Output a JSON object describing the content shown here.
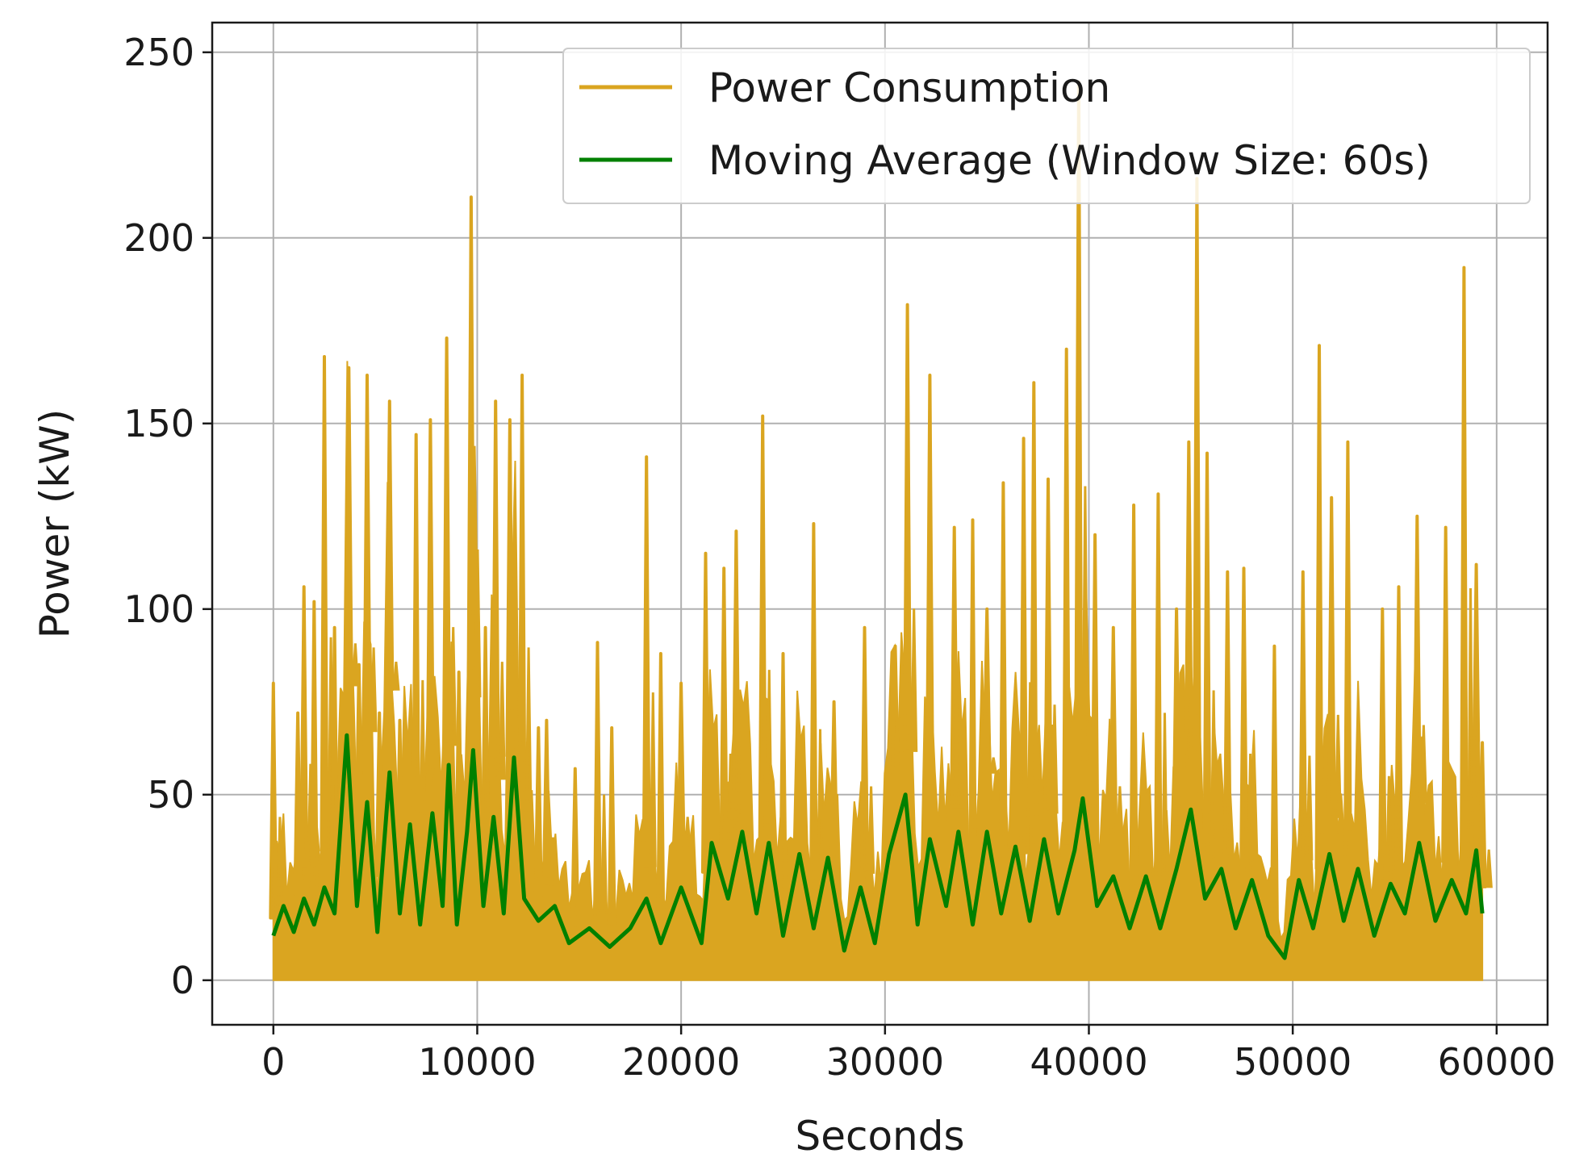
{
  "chart_data": {
    "type": "line",
    "title": "",
    "xlabel": "Seconds",
    "ylabel": "Power (kW)",
    "xlim": [
      -3000,
      62500
    ],
    "ylim": [
      -12,
      258
    ],
    "xticks": [
      0,
      10000,
      20000,
      30000,
      40000,
      50000,
      60000
    ],
    "xtick_labels": [
      "0",
      "10000",
      "20000",
      "30000",
      "40000",
      "50000",
      "60000"
    ],
    "yticks": [
      0,
      50,
      100,
      150,
      200,
      250
    ],
    "ytick_labels": [
      "0",
      "50",
      "100",
      "150",
      "200",
      "250"
    ],
    "grid": true,
    "legend_position": "top-right",
    "series": [
      {
        "name": "Power Consumption",
        "color": "#daa520",
        "style": "dense fluctuating band from near 0 with frequent spikes",
        "peaks": [
          {
            "x": 0,
            "y": 80
          },
          {
            "x": 1200,
            "y": 72
          },
          {
            "x": 1500,
            "y": 106
          },
          {
            "x": 2000,
            "y": 102
          },
          {
            "x": 2500,
            "y": 168
          },
          {
            "x": 3000,
            "y": 95
          },
          {
            "x": 3700,
            "y": 165
          },
          {
            "x": 4200,
            "y": 85
          },
          {
            "x": 4600,
            "y": 163
          },
          {
            "x": 5200,
            "y": 72
          },
          {
            "x": 5700,
            "y": 156
          },
          {
            "x": 6200,
            "y": 70
          },
          {
            "x": 7000,
            "y": 147
          },
          {
            "x": 7700,
            "y": 151
          },
          {
            "x": 8500,
            "y": 173
          },
          {
            "x": 9100,
            "y": 83
          },
          {
            "x": 9700,
            "y": 211
          },
          {
            "x": 10400,
            "y": 95
          },
          {
            "x": 10900,
            "y": 156
          },
          {
            "x": 11600,
            "y": 151
          },
          {
            "x": 12200,
            "y": 163
          },
          {
            "x": 13000,
            "y": 68
          },
          {
            "x": 13400,
            "y": 70
          },
          {
            "x": 14800,
            "y": 57
          },
          {
            "x": 15900,
            "y": 91
          },
          {
            "x": 16600,
            "y": 68
          },
          {
            "x": 18300,
            "y": 141
          },
          {
            "x": 19000,
            "y": 88
          },
          {
            "x": 20000,
            "y": 80
          },
          {
            "x": 21200,
            "y": 115
          },
          {
            "x": 22100,
            "y": 111
          },
          {
            "x": 22700,
            "y": 121
          },
          {
            "x": 24000,
            "y": 152
          },
          {
            "x": 25000,
            "y": 88
          },
          {
            "x": 26500,
            "y": 123
          },
          {
            "x": 27500,
            "y": 75
          },
          {
            "x": 29000,
            "y": 95
          },
          {
            "x": 30500,
            "y": 90
          },
          {
            "x": 31100,
            "y": 182
          },
          {
            "x": 32200,
            "y": 163
          },
          {
            "x": 33400,
            "y": 122
          },
          {
            "x": 34300,
            "y": 124
          },
          {
            "x": 35000,
            "y": 100
          },
          {
            "x": 35800,
            "y": 134
          },
          {
            "x": 36800,
            "y": 146
          },
          {
            "x": 37300,
            "y": 161
          },
          {
            "x": 38000,
            "y": 135
          },
          {
            "x": 38900,
            "y": 170
          },
          {
            "x": 39500,
            "y": 242
          },
          {
            "x": 40300,
            "y": 120
          },
          {
            "x": 41200,
            "y": 95
          },
          {
            "x": 42200,
            "y": 128
          },
          {
            "x": 43400,
            "y": 131
          },
          {
            "x": 44300,
            "y": 100
          },
          {
            "x": 44900,
            "y": 145
          },
          {
            "x": 45300,
            "y": 216
          },
          {
            "x": 45800,
            "y": 142
          },
          {
            "x": 46800,
            "y": 110
          },
          {
            "x": 47600,
            "y": 111
          },
          {
            "x": 49100,
            "y": 90
          },
          {
            "x": 50500,
            "y": 110
          },
          {
            "x": 51300,
            "y": 171
          },
          {
            "x": 51900,
            "y": 130
          },
          {
            "x": 52700,
            "y": 145
          },
          {
            "x": 54400,
            "y": 100
          },
          {
            "x": 55200,
            "y": 106
          },
          {
            "x": 56100,
            "y": 125
          },
          {
            "x": 57500,
            "y": 122
          },
          {
            "x": 58400,
            "y": 192
          },
          {
            "x": 59000,
            "y": 112
          },
          {
            "x": 59300,
            "y": 64
          }
        ]
      },
      {
        "name": "Moving Average (Window Size: 60s)",
        "color": "#008000",
        "points": [
          {
            "x": 0,
            "y": 12
          },
          {
            "x": 500,
            "y": 20
          },
          {
            "x": 1000,
            "y": 13
          },
          {
            "x": 1500,
            "y": 22
          },
          {
            "x": 2000,
            "y": 15
          },
          {
            "x": 2500,
            "y": 25
          },
          {
            "x": 3000,
            "y": 18
          },
          {
            "x": 3600,
            "y": 66
          },
          {
            "x": 4100,
            "y": 20
          },
          {
            "x": 4600,
            "y": 48
          },
          {
            "x": 5100,
            "y": 13
          },
          {
            "x": 5700,
            "y": 56
          },
          {
            "x": 6200,
            "y": 18
          },
          {
            "x": 6700,
            "y": 42
          },
          {
            "x": 7200,
            "y": 15
          },
          {
            "x": 7800,
            "y": 45
          },
          {
            "x": 8300,
            "y": 20
          },
          {
            "x": 8600,
            "y": 58
          },
          {
            "x": 9000,
            "y": 15
          },
          {
            "x": 9500,
            "y": 40
          },
          {
            "x": 9800,
            "y": 62
          },
          {
            "x": 10300,
            "y": 20
          },
          {
            "x": 10800,
            "y": 44
          },
          {
            "x": 11300,
            "y": 18
          },
          {
            "x": 11800,
            "y": 60
          },
          {
            "x": 12300,
            "y": 22
          },
          {
            "x": 13000,
            "y": 16
          },
          {
            "x": 13800,
            "y": 20
          },
          {
            "x": 14500,
            "y": 10
          },
          {
            "x": 15500,
            "y": 14
          },
          {
            "x": 16500,
            "y": 9
          },
          {
            "x": 17500,
            "y": 14
          },
          {
            "x": 18300,
            "y": 22
          },
          {
            "x": 19000,
            "y": 10
          },
          {
            "x": 20000,
            "y": 25
          },
          {
            "x": 21000,
            "y": 10
          },
          {
            "x": 21500,
            "y": 37
          },
          {
            "x": 22300,
            "y": 22
          },
          {
            "x": 23000,
            "y": 40
          },
          {
            "x": 23700,
            "y": 18
          },
          {
            "x": 24300,
            "y": 37
          },
          {
            "x": 25000,
            "y": 12
          },
          {
            "x": 25800,
            "y": 34
          },
          {
            "x": 26500,
            "y": 14
          },
          {
            "x": 27200,
            "y": 33
          },
          {
            "x": 28000,
            "y": 8
          },
          {
            "x": 28800,
            "y": 25
          },
          {
            "x": 29500,
            "y": 10
          },
          {
            "x": 30200,
            "y": 34
          },
          {
            "x": 31000,
            "y": 50
          },
          {
            "x": 31600,
            "y": 15
          },
          {
            "x": 32200,
            "y": 38
          },
          {
            "x": 33000,
            "y": 20
          },
          {
            "x": 33600,
            "y": 40
          },
          {
            "x": 34300,
            "y": 15
          },
          {
            "x": 35000,
            "y": 40
          },
          {
            "x": 35700,
            "y": 18
          },
          {
            "x": 36400,
            "y": 36
          },
          {
            "x": 37100,
            "y": 16
          },
          {
            "x": 37800,
            "y": 38
          },
          {
            "x": 38500,
            "y": 18
          },
          {
            "x": 39300,
            "y": 35
          },
          {
            "x": 39700,
            "y": 49
          },
          {
            "x": 40400,
            "y": 20
          },
          {
            "x": 41200,
            "y": 28
          },
          {
            "x": 42000,
            "y": 14
          },
          {
            "x": 42800,
            "y": 28
          },
          {
            "x": 43500,
            "y": 14
          },
          {
            "x": 44300,
            "y": 30
          },
          {
            "x": 45000,
            "y": 46
          },
          {
            "x": 45700,
            "y": 22
          },
          {
            "x": 46500,
            "y": 30
          },
          {
            "x": 47200,
            "y": 14
          },
          {
            "x": 48000,
            "y": 27
          },
          {
            "x": 48800,
            "y": 12
          },
          {
            "x": 49600,
            "y": 6
          },
          {
            "x": 50300,
            "y": 27
          },
          {
            "x": 51000,
            "y": 14
          },
          {
            "x": 51800,
            "y": 34
          },
          {
            "x": 52500,
            "y": 16
          },
          {
            "x": 53200,
            "y": 30
          },
          {
            "x": 54000,
            "y": 12
          },
          {
            "x": 54800,
            "y": 26
          },
          {
            "x": 55500,
            "y": 18
          },
          {
            "x": 56200,
            "y": 37
          },
          {
            "x": 57000,
            "y": 16
          },
          {
            "x": 57800,
            "y": 27
          },
          {
            "x": 58500,
            "y": 18
          },
          {
            "x": 59000,
            "y": 35
          },
          {
            "x": 59300,
            "y": 18
          }
        ]
      }
    ]
  }
}
